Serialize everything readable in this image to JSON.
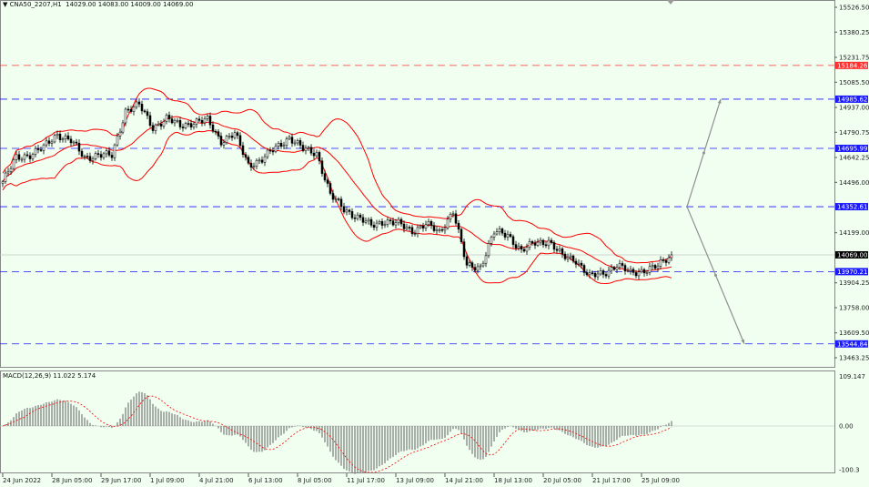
{
  "header": {
    "symbol": "CNA50_2207,H1",
    "open": "14029.00",
    "high": "14083.00",
    "low": "14009.00",
    "close": "14069.00"
  },
  "macd_label": {
    "name": "MACD(12,26,9)",
    "main": "11.022",
    "signal": "5.174"
  },
  "colors": {
    "background": "#f0fff0",
    "candle": "#000000",
    "bands": "#ff0000",
    "level_blue": "#1a1aff",
    "level_red": "#ff3030",
    "macd_hist": "#777777",
    "macd_signal": "#ff0000",
    "arrow": "#909090"
  },
  "chart_data": [
    {
      "type": "candlestick",
      "symbol": "CNA50_2207",
      "timeframe": "H1",
      "ylim": [
        13463.25,
        15526.5
      ],
      "y_ticks": [
        "15526.50",
        "15380.25",
        "15231.75",
        "15085.50",
        "14937.00",
        "14790.75",
        "14642.25",
        "14496.00",
        "14199.00",
        "13904.25",
        "13758.00",
        "13609.50",
        "13463.25"
      ],
      "x_ticks": [
        "24 Jun 2022",
        "28 Jun 05:00",
        "29 Jun 17:00",
        "1 Jul 09:00",
        "4 Jul 21:00",
        "6 Jul 13:00",
        "8 Jul 05:00",
        "11 Jul 17:00",
        "13 Jul 09:00",
        "14 Jul 21:00",
        "18 Jul 13:00",
        "20 Jul 05:00",
        "21 Jul 17:00",
        "25 Jul 09:00"
      ],
      "close_path_sampled": [
        14500,
        14640,
        14660,
        14700,
        14780,
        14740,
        14640,
        14660,
        14650,
        14920,
        14950,
        14820,
        14870,
        14830,
        14850,
        14860,
        14740,
        14780,
        14600,
        14630,
        14700,
        14760,
        14690,
        14670,
        14420,
        14340,
        14290,
        14240,
        14270,
        14250,
        14210,
        14250,
        14200,
        14330,
        14000,
        14000,
        14200,
        14190,
        14090,
        14140,
        14150,
        14060,
        14040,
        13940,
        13960,
        14010,
        13960,
        13980,
        14000,
        14069
      ],
      "current_price": "14069.00",
      "indicators": [
        "Bollinger Bands (20, 2)"
      ],
      "levels": [
        {
          "value": "15184.26",
          "color": "red"
        },
        {
          "value": "14985.62",
          "color": "blue"
        },
        {
          "value": "14695.99",
          "color": "blue"
        },
        {
          "value": "14352.61",
          "color": "blue"
        },
        {
          "value": "13970.21",
          "color": "blue"
        },
        {
          "value": "13544.84",
          "color": "blue"
        }
      ],
      "projection_arrows": [
        {
          "from": 14352.61,
          "to": 14985.62
        },
        {
          "from": 14352.61,
          "to": 13544.84
        }
      ]
    },
    {
      "type": "bar",
      "name": "MACD(12,26,9)",
      "ylim": [
        -100.3,
        109.147
      ],
      "y_ticks": [
        "109.147",
        "0.00",
        "-100.3"
      ]
    }
  ]
}
